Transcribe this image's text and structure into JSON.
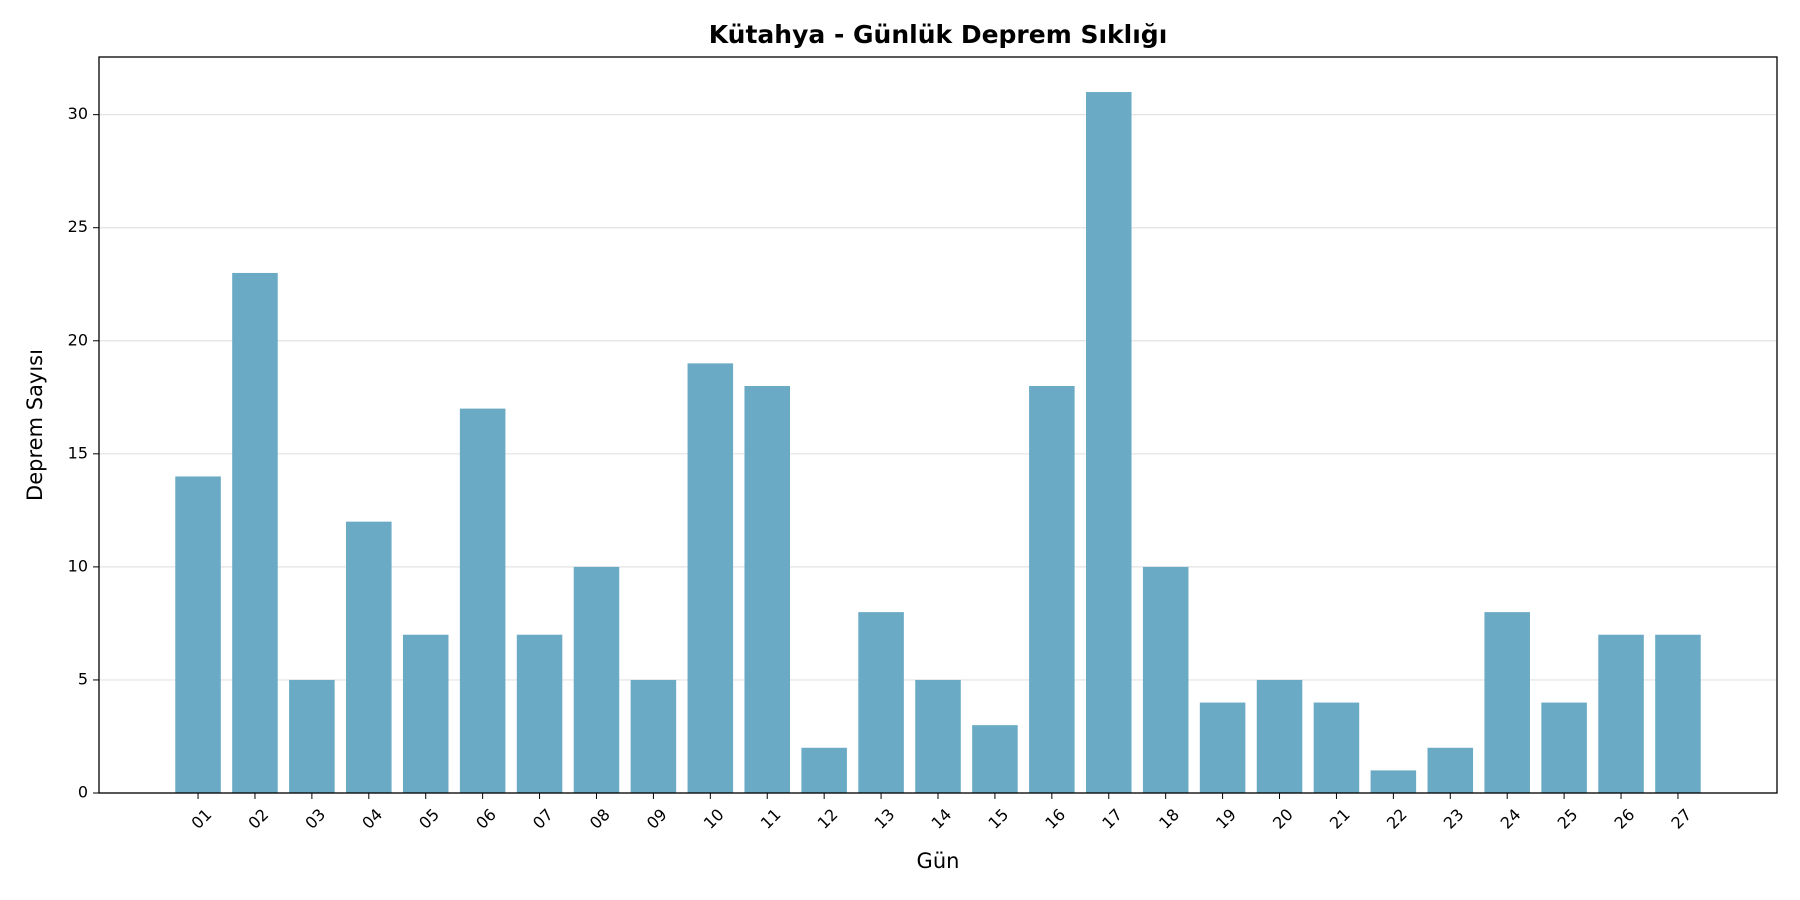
{
  "chart_data": {
    "type": "bar",
    "title": "Kütahya - Günlük Deprem Sıklığı",
    "x_label": "Gün",
    "y_label": "Deprem Sayısı",
    "categories": [
      "01",
      "02",
      "03",
      "04",
      "05",
      "06",
      "07",
      "08",
      "09",
      "10",
      "11",
      "12",
      "13",
      "14",
      "15",
      "16",
      "17",
      "18",
      "19",
      "20",
      "21",
      "22",
      "23",
      "24",
      "25",
      "26",
      "27"
    ],
    "values": [
      14,
      23,
      5,
      12,
      7,
      17,
      7,
      10,
      5,
      19,
      18,
      2,
      8,
      5,
      3,
      18,
      31,
      10,
      4,
      5,
      4,
      1,
      2,
      8,
      4,
      7,
      7
    ],
    "color": "#6aaac5",
    "ylim": [
      0,
      32.55
    ],
    "yticks": [
      0,
      5,
      10,
      15,
      20,
      25,
      30
    ],
    "grid": true
  }
}
